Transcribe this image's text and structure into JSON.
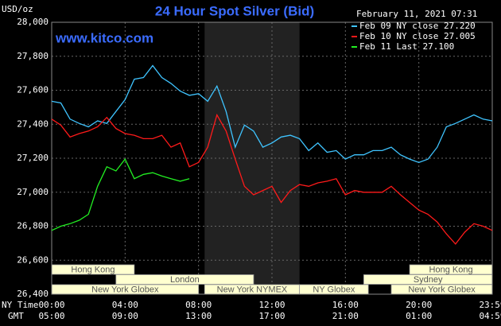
{
  "chart_data": {
    "type": "line",
    "title": "24 Hour Spot Silver (Bid)",
    "timestamp": "February 11, 2021 07:31",
    "watermark": "www.kitco.com",
    "y_unit": "USD/oz",
    "x_row_labels": [
      "NY Time",
      "GMT"
    ],
    "ylim": [
      26400,
      28000
    ],
    "yticks": [
      {
        "value": 26400,
        "label": "26,400"
      },
      {
        "value": 26600,
        "label": "26,600"
      },
      {
        "value": 26800,
        "label": "26,800"
      },
      {
        "value": 27000,
        "label": "27,000"
      },
      {
        "value": 27200,
        "label": "27,200"
      },
      {
        "value": 27400,
        "label": "27,400"
      },
      {
        "value": 27600,
        "label": "27,600"
      },
      {
        "value": 27800,
        "label": "27,800"
      },
      {
        "value": 28000,
        "label": "28,000"
      }
    ],
    "xlim": [
      0,
      24
    ],
    "xticks": [
      {
        "value": 0,
        "label": "00:00"
      },
      {
        "value": 4,
        "label": "04:00"
      },
      {
        "value": 8,
        "label": "08:00"
      },
      {
        "value": 12,
        "label": "12:00"
      },
      {
        "value": 16,
        "label": "16:00"
      },
      {
        "value": 20,
        "label": "20:00"
      },
      {
        "value": 24,
        "label": "23:59"
      }
    ],
    "gmt_labels": [
      "05:00",
      "09:00",
      "13:00",
      "17:00",
      "21:00",
      "01:00",
      "04:59"
    ],
    "grid": true,
    "sessions": [
      {
        "name": "Hong Kong",
        "start": 0,
        "end": 4.5
      },
      {
        "name": "Hong Kong",
        "start": 19.5,
        "end": 24
      },
      {
        "name": "London",
        "start": 3.5,
        "end": 11
      },
      {
        "name": "Sydney",
        "start": 17,
        "end": 24
      },
      {
        "name": "New York Globex",
        "start": 0,
        "end": 8
      },
      {
        "name": "New York NYMEX",
        "start": 8.33,
        "end": 13.5
      },
      {
        "name": "NY Globex",
        "start": 13.5,
        "end": 17.25
      },
      {
        "name": "New York Globex",
        "start": 18.5,
        "end": 24
      }
    ],
    "x": [
      0,
      0.5,
      1,
      1.5,
      2,
      2.5,
      3,
      3.5,
      4,
      4.5,
      5,
      5.5,
      6,
      6.5,
      7,
      7.5,
      8,
      8.5,
      9,
      9.5,
      10,
      10.5,
      11,
      11.5,
      12,
      12.5,
      13,
      13.5,
      14,
      14.5,
      15,
      15.5,
      16,
      16.5,
      17,
      17.5,
      18,
      18.5,
      19,
      19.5,
      20,
      20.5,
      21,
      21.5,
      22,
      22.5,
      23,
      23.5,
      24
    ],
    "series": [
      {
        "name": "Feb 09 NY close 27.220",
        "color": "#3fc4ff",
        "values": [
          27535,
          27525,
          27430,
          27405,
          27385,
          27420,
          27405,
          27475,
          27545,
          27665,
          27675,
          27745,
          27675,
          27640,
          27595,
          27570,
          27580,
          27535,
          27625,
          27475,
          27265,
          27395,
          27360,
          27265,
          27290,
          27325,
          27335,
          27315,
          27245,
          27290,
          27235,
          27245,
          27195,
          27220,
          27220,
          27245,
          27245,
          27265,
          27220,
          27195,
          27175,
          27195,
          27265,
          27385,
          27405,
          27430,
          27455,
          27430,
          27420
        ]
      },
      {
        "name": "Feb 10 NY close 27.005",
        "color": "#ff1a1a",
        "values": [
          27430,
          27395,
          27325,
          27345,
          27360,
          27385,
          27440,
          27375,
          27345,
          27335,
          27315,
          27315,
          27335,
          27265,
          27290,
          27150,
          27175,
          27265,
          27455,
          27360,
          27195,
          27035,
          26985,
          27010,
          27035,
          26940,
          27010,
          27045,
          27035,
          27055,
          27065,
          27080,
          26985,
          27010,
          27000,
          27000,
          27000,
          27035,
          26985,
          26940,
          26895,
          26870,
          26825,
          26755,
          26695,
          26765,
          26815,
          26800,
          26775
        ]
      },
      {
        "name": "Feb 11 Last 27.100",
        "color": "#22ee22",
        "values": [
          26775,
          26800,
          26815,
          26835,
          26870,
          27035,
          27150,
          27125,
          27195,
          27080,
          27105,
          27115,
          27095,
          27080,
          27065,
          27080,
          null,
          null,
          null,
          null,
          null,
          null,
          null,
          null,
          null,
          null,
          null,
          null,
          null,
          null,
          null,
          null,
          null,
          null,
          null,
          null,
          null,
          null,
          null,
          null,
          null,
          null,
          null,
          null,
          null,
          null,
          null,
          null,
          null
        ]
      }
    ]
  }
}
